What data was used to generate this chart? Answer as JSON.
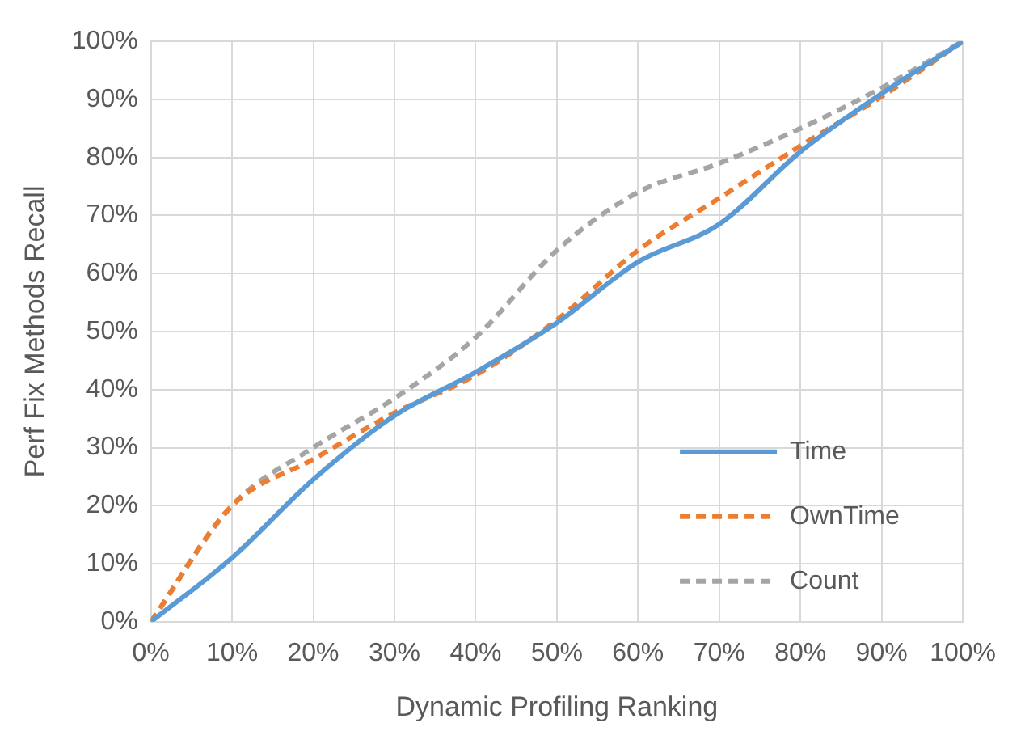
{
  "chart_data": {
    "type": "line",
    "xlabel": "Dynamic Profiling Ranking",
    "ylabel": "Perf Fix Methods Recall",
    "x": [
      0,
      10,
      20,
      30,
      40,
      50,
      60,
      70,
      80,
      90,
      100
    ],
    "series": [
      {
        "name": "Time",
        "color": "#5b9bd5",
        "line_style": "solid",
        "values": [
          0,
          11,
          24.5,
          35.5,
          43,
          51.5,
          62,
          68.5,
          81,
          91,
          100
        ]
      },
      {
        "name": "OwnTime",
        "color": "#ed7d31",
        "line_style": "dashed",
        "values": [
          0,
          20,
          28,
          36,
          42.5,
          52,
          64,
          73,
          82,
          90.5,
          100
        ]
      },
      {
        "name": "Count",
        "color": "#a5a5a5",
        "line_style": "dashed",
        "values": [
          0,
          20,
          30,
          38.5,
          49,
          64,
          74,
          79,
          85,
          92,
          100
        ]
      }
    ],
    "xlim": [
      0,
      100
    ],
    "ylim": [
      0,
      100
    ],
    "xticks": [
      {
        "value": 0,
        "label": "0%"
      },
      {
        "value": 10,
        "label": "10%"
      },
      {
        "value": 20,
        "label": "20%"
      },
      {
        "value": 30,
        "label": "30%"
      },
      {
        "value": 40,
        "label": "40%"
      },
      {
        "value": 50,
        "label": "50%"
      },
      {
        "value": 60,
        "label": "60%"
      },
      {
        "value": 70,
        "label": "70%"
      },
      {
        "value": 80,
        "label": "80%"
      },
      {
        "value": 90,
        "label": "90%"
      },
      {
        "value": 100,
        "label": "100%"
      }
    ],
    "yticks": [
      {
        "value": 0,
        "label": "0%"
      },
      {
        "value": 10,
        "label": "10%"
      },
      {
        "value": 20,
        "label": "20%"
      },
      {
        "value": 30,
        "label": "30%"
      },
      {
        "value": 40,
        "label": "40%"
      },
      {
        "value": 50,
        "label": "50%"
      },
      {
        "value": 60,
        "label": "60%"
      },
      {
        "value": 70,
        "label": "70%"
      },
      {
        "value": 80,
        "label": "80%"
      },
      {
        "value": 90,
        "label": "90%"
      },
      {
        "value": 100,
        "label": "100%"
      }
    ],
    "grid": true,
    "legend": "bottom right",
    "marker": "none"
  }
}
